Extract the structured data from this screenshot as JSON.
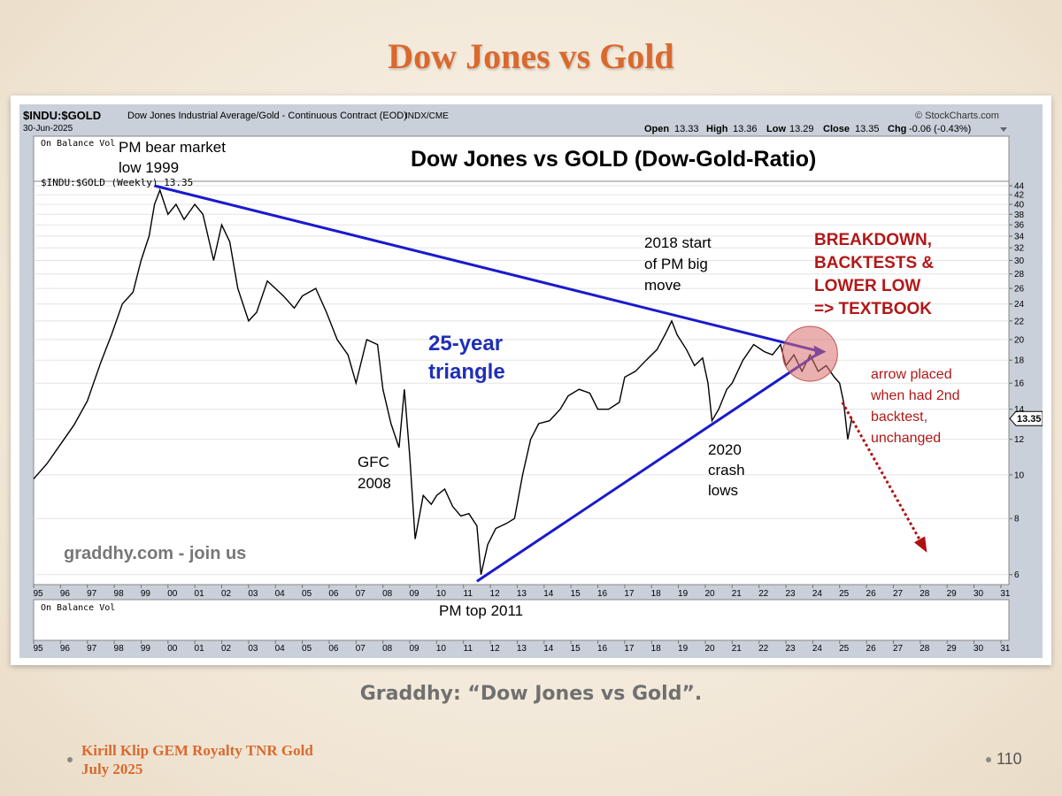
{
  "slide": {
    "title": "Dow Jones vs Gold",
    "caption": "Graddhy: “Dow Jones vs Gold”.",
    "footer_line1": "Kirill Klip GEM Royalty TNR Gold",
    "footer_line2": "July 2025",
    "page_number": "110"
  },
  "chart_data": {
    "type": "line",
    "symbol": "$INDU:$GOLD",
    "description": "Dow Jones Industrial Average/Gold - Continuous Contract (EOD)",
    "exchange": "INDX/CME",
    "date": "30-Jun-2025",
    "source": "© StockCharts.com",
    "quote": {
      "open_label": "Open",
      "open": "13.33",
      "high_label": "High",
      "high": "13.36",
      "low_label": "Low",
      "low": "13.29",
      "close_label": "Close",
      "close": "13.35",
      "chg_label": "Chg",
      "chg": "-0.06 (-0.43%)"
    },
    "title": "Dow Jones vs GOLD (Dow-Gold-Ratio)",
    "top_panel_label": "On Balance Vol",
    "series_label": "$INDU:$GOLD (Weekly) 13.35",
    "bottom_panel_label": "On Balance Vol",
    "last_value_label": "13.35",
    "watermark": "graddhy.com - join us",
    "y_scale": "log",
    "ylim": [
      5.7,
      45
    ],
    "y_ticks": [
      6,
      8,
      10,
      12,
      14,
      16,
      18,
      20,
      22,
      24,
      26,
      28,
      30,
      32,
      34,
      36,
      38,
      40,
      42,
      44
    ],
    "xlim": [
      1995.0,
      2031.3
    ],
    "x_tick_labels": [
      "95",
      "96",
      "97",
      "98",
      "99",
      "00",
      "01",
      "02",
      "03",
      "04",
      "05",
      "06",
      "07",
      "08",
      "09",
      "10",
      "11",
      "12",
      "13",
      "14",
      "15",
      "16",
      "17",
      "18",
      "19",
      "20",
      "21",
      "22",
      "23",
      "24",
      "25",
      "26",
      "27",
      "28",
      "29",
      "30",
      "31"
    ],
    "series": [
      {
        "name": "$INDU:$GOLD (Weekly)",
        "points": [
          [
            1995.0,
            9.8
          ],
          [
            1995.5,
            10.6
          ],
          [
            1996.0,
            11.7
          ],
          [
            1996.5,
            12.9
          ],
          [
            1997.0,
            14.6
          ],
          [
            1997.5,
            17.8
          ],
          [
            1997.9,
            20.5
          ],
          [
            1998.3,
            24.0
          ],
          [
            1998.7,
            25.5
          ],
          [
            1999.0,
            30.0
          ],
          [
            1999.3,
            34.0
          ],
          [
            1999.5,
            40.0
          ],
          [
            1999.7,
            43.0
          ],
          [
            2000.0,
            38.0
          ],
          [
            2000.3,
            40.0
          ],
          [
            2000.6,
            37.0
          ],
          [
            2001.0,
            40.0
          ],
          [
            2001.3,
            38.0
          ],
          [
            2001.7,
            30.0
          ],
          [
            2002.0,
            36.0
          ],
          [
            2002.3,
            33.0
          ],
          [
            2002.6,
            26.0
          ],
          [
            2003.0,
            22.0
          ],
          [
            2003.3,
            23.0
          ],
          [
            2003.7,
            27.0
          ],
          [
            2004.0,
            26.0
          ],
          [
            2004.3,
            25.0
          ],
          [
            2004.7,
            23.5
          ],
          [
            2005.0,
            25.0
          ],
          [
            2005.5,
            26.0
          ],
          [
            2005.9,
            23.0
          ],
          [
            2006.3,
            20.0
          ],
          [
            2006.7,
            18.5
          ],
          [
            2007.0,
            16.0
          ],
          [
            2007.4,
            20.0
          ],
          [
            2007.8,
            19.5
          ],
          [
            2008.0,
            15.5
          ],
          [
            2008.3,
            13.0
          ],
          [
            2008.6,
            11.5
          ],
          [
            2008.8,
            15.5
          ],
          [
            2009.0,
            11.0
          ],
          [
            2009.2,
            7.2
          ],
          [
            2009.5,
            9.0
          ],
          [
            2009.8,
            8.6
          ],
          [
            2010.0,
            9.0
          ],
          [
            2010.3,
            9.3
          ],
          [
            2010.6,
            8.5
          ],
          [
            2010.9,
            8.1
          ],
          [
            2011.2,
            8.2
          ],
          [
            2011.5,
            7.7
          ],
          [
            2011.65,
            6.0
          ],
          [
            2011.9,
            7.0
          ],
          [
            2012.2,
            7.6
          ],
          [
            2012.6,
            7.8
          ],
          [
            2012.9,
            8.0
          ],
          [
            2013.2,
            10.0
          ],
          [
            2013.5,
            12.0
          ],
          [
            2013.8,
            13.0
          ],
          [
            2014.2,
            13.2
          ],
          [
            2014.6,
            14.0
          ],
          [
            2014.9,
            15.0
          ],
          [
            2015.3,
            15.5
          ],
          [
            2015.7,
            15.2
          ],
          [
            2016.0,
            14.0
          ],
          [
            2016.4,
            14.0
          ],
          [
            2016.8,
            14.5
          ],
          [
            2017.0,
            16.5
          ],
          [
            2017.4,
            17.0
          ],
          [
            2017.8,
            18.0
          ],
          [
            2018.2,
            19.0
          ],
          [
            2018.5,
            20.5
          ],
          [
            2018.75,
            22.0
          ],
          [
            2018.95,
            20.5
          ],
          [
            2019.3,
            19.0
          ],
          [
            2019.6,
            17.5
          ],
          [
            2019.9,
            18.2
          ],
          [
            2020.1,
            16.0
          ],
          [
            2020.25,
            13.2
          ],
          [
            2020.5,
            14.0
          ],
          [
            2020.8,
            15.5
          ],
          [
            2021.0,
            16.0
          ],
          [
            2021.4,
            18.0
          ],
          [
            2021.8,
            19.5
          ],
          [
            2022.2,
            18.8
          ],
          [
            2022.5,
            18.5
          ],
          [
            2022.8,
            19.5
          ],
          [
            2023.0,
            17.5
          ],
          [
            2023.3,
            18.5
          ],
          [
            2023.6,
            17.0
          ],
          [
            2023.9,
            18.5
          ],
          [
            2024.2,
            17.0
          ],
          [
            2024.5,
            17.5
          ],
          [
            2024.8,
            16.5
          ],
          [
            2025.0,
            16.0
          ],
          [
            2025.15,
            14.5
          ],
          [
            2025.3,
            12.0
          ],
          [
            2025.45,
            13.35
          ]
        ]
      }
    ],
    "trendlines": [
      {
        "name": "upper",
        "from": [
          1999.5,
          44.0
        ],
        "to": [
          2024.3,
          18.8
        ]
      },
      {
        "name": "lower",
        "from": [
          2011.5,
          5.8
        ],
        "to": [
          2024.3,
          18.8
        ]
      }
    ],
    "projection_arrow": {
      "from": [
        2025.1,
        14.5
      ],
      "to": [
        2028.2,
        6.8
      ]
    },
    "annotations": {
      "bear_low_line1": "PM bear market",
      "bear_low_line2": "low 1999",
      "triangle_line1": "25-year",
      "triangle_line2": "triangle",
      "gfc_line1": "GFC",
      "gfc_line2": "2008",
      "pm_top": "PM top 2011",
      "pm_move_line1": "2018 start",
      "pm_move_line2": "of PM big",
      "pm_move_line3": "move",
      "crash_line1": "2020",
      "crash_line2": "crash",
      "crash_line3": "lows",
      "breakdown_line1": "BREAKDOWN,",
      "breakdown_line2": "BACKTESTS &",
      "breakdown_line3": "LOWER LOW",
      "breakdown_line4": "=> TEXTBOOK",
      "arrow_line1": "arrow placed",
      "arrow_line2": "when had 2nd",
      "arrow_line3": "backtest,",
      "arrow_line4": "unchanged"
    },
    "colors": {
      "price_line": "#000000",
      "trendline": "#1a1acc",
      "triangle_text": "#1f2fb8",
      "breakdown_text": "#b21818",
      "arrow_text": "#b21818",
      "projection_arrow": "#b01010",
      "highlight_circle": "#d97070",
      "panel_background": "#c9d0da",
      "plot_background": "#ffffff",
      "title_orange": "#d9692e"
    }
  }
}
